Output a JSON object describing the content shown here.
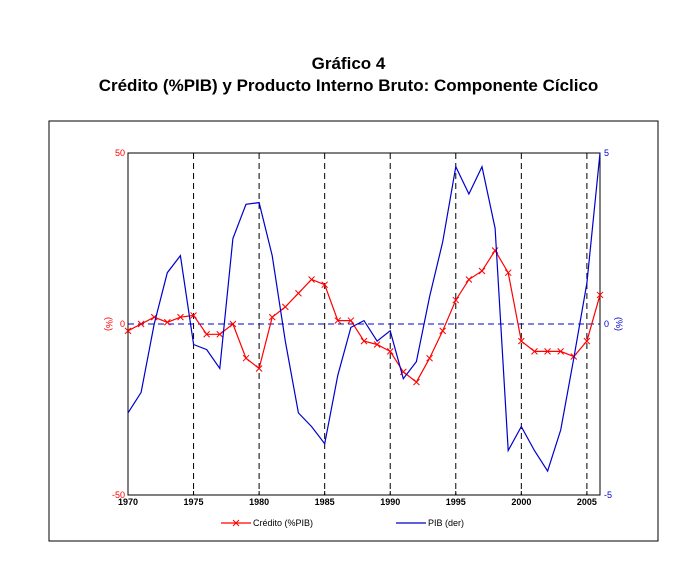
{
  "page": {
    "title_line1": "Gráfico 4",
    "title_line2": "Crédito (%PIB) y Producto Interno Bruto: Componente Cíclico"
  },
  "chart_data": {
    "type": "line",
    "x_ticks": [
      1970,
      1975,
      1980,
      1985,
      1990,
      1995,
      2000,
      2005
    ],
    "xlim": [
      1970,
      2006
    ],
    "left_axis": {
      "label": "(%)",
      "ylim": [
        -50,
        50
      ],
      "ticks": [
        "50",
        "0",
        "-50"
      ],
      "color": "#ff0000"
    },
    "right_axis": {
      "label": "(%)",
      "ylim": [
        -5,
        5
      ],
      "ticks": [
        "5",
        "0",
        "-5"
      ],
      "color": "#0000cc"
    },
    "grid": "dashed vertical lines at tick years, dashed horizontal zero line",
    "legend_position": "bottom",
    "series": [
      {
        "name": "Crédito (%PIB)",
        "axis": "left",
        "color": "#ff0000",
        "marker": "x",
        "x": [
          1970,
          1971,
          1972,
          1973,
          1974,
          1975,
          1976,
          1977,
          1978,
          1979,
          1980,
          1981,
          1982,
          1983,
          1984,
          1985,
          1986,
          1987,
          1988,
          1989,
          1990,
          1991,
          1992,
          1993,
          1994,
          1995,
          1996,
          1997,
          1998,
          1999,
          2000,
          2001,
          2002,
          2003,
          2004,
          2005,
          2006
        ],
        "values": [
          -2,
          0,
          2,
          0.5,
          2,
          2.5,
          -3,
          -3,
          0,
          -10,
          -13,
          2,
          5,
          9,
          13,
          11.5,
          1,
          1,
          -5,
          -6,
          -8,
          -14,
          -17,
          -10,
          -2,
          7,
          13,
          15.5,
          21.5,
          15,
          -5,
          -8,
          -8,
          -8,
          -9.5,
          -5,
          8.5
        ]
      },
      {
        "name": "PIB (der)",
        "axis": "right",
        "color": "#0000cc",
        "marker": "none",
        "x": [
          1970,
          1971,
          1972,
          1973,
          1974,
          1975,
          1976,
          1977,
          1978,
          1979,
          1980,
          1981,
          1982,
          1983,
          1984,
          1985,
          1986,
          1987,
          1988,
          1989,
          1990,
          1991,
          1992,
          1993,
          1994,
          1995,
          1996,
          1997,
          1998,
          1999,
          2000,
          2001,
          2002,
          2003,
          2004,
          2005,
          2006
        ],
        "values": [
          -2.6,
          -2,
          0,
          1.5,
          2,
          -0.6,
          -0.75,
          -1.3,
          2.5,
          3.5,
          3.55,
          2,
          -0.5,
          -2.6,
          -3,
          -3.5,
          -1.5,
          -0.1,
          0.1,
          -0.5,
          -0.2,
          -1.6,
          -1.1,
          0.8,
          2.4,
          4.6,
          3.8,
          4.6,
          2.8,
          -3.7,
          -3,
          -3.7,
          -4.3,
          -3.1,
          -1,
          1.2,
          5
        ]
      }
    ]
  }
}
